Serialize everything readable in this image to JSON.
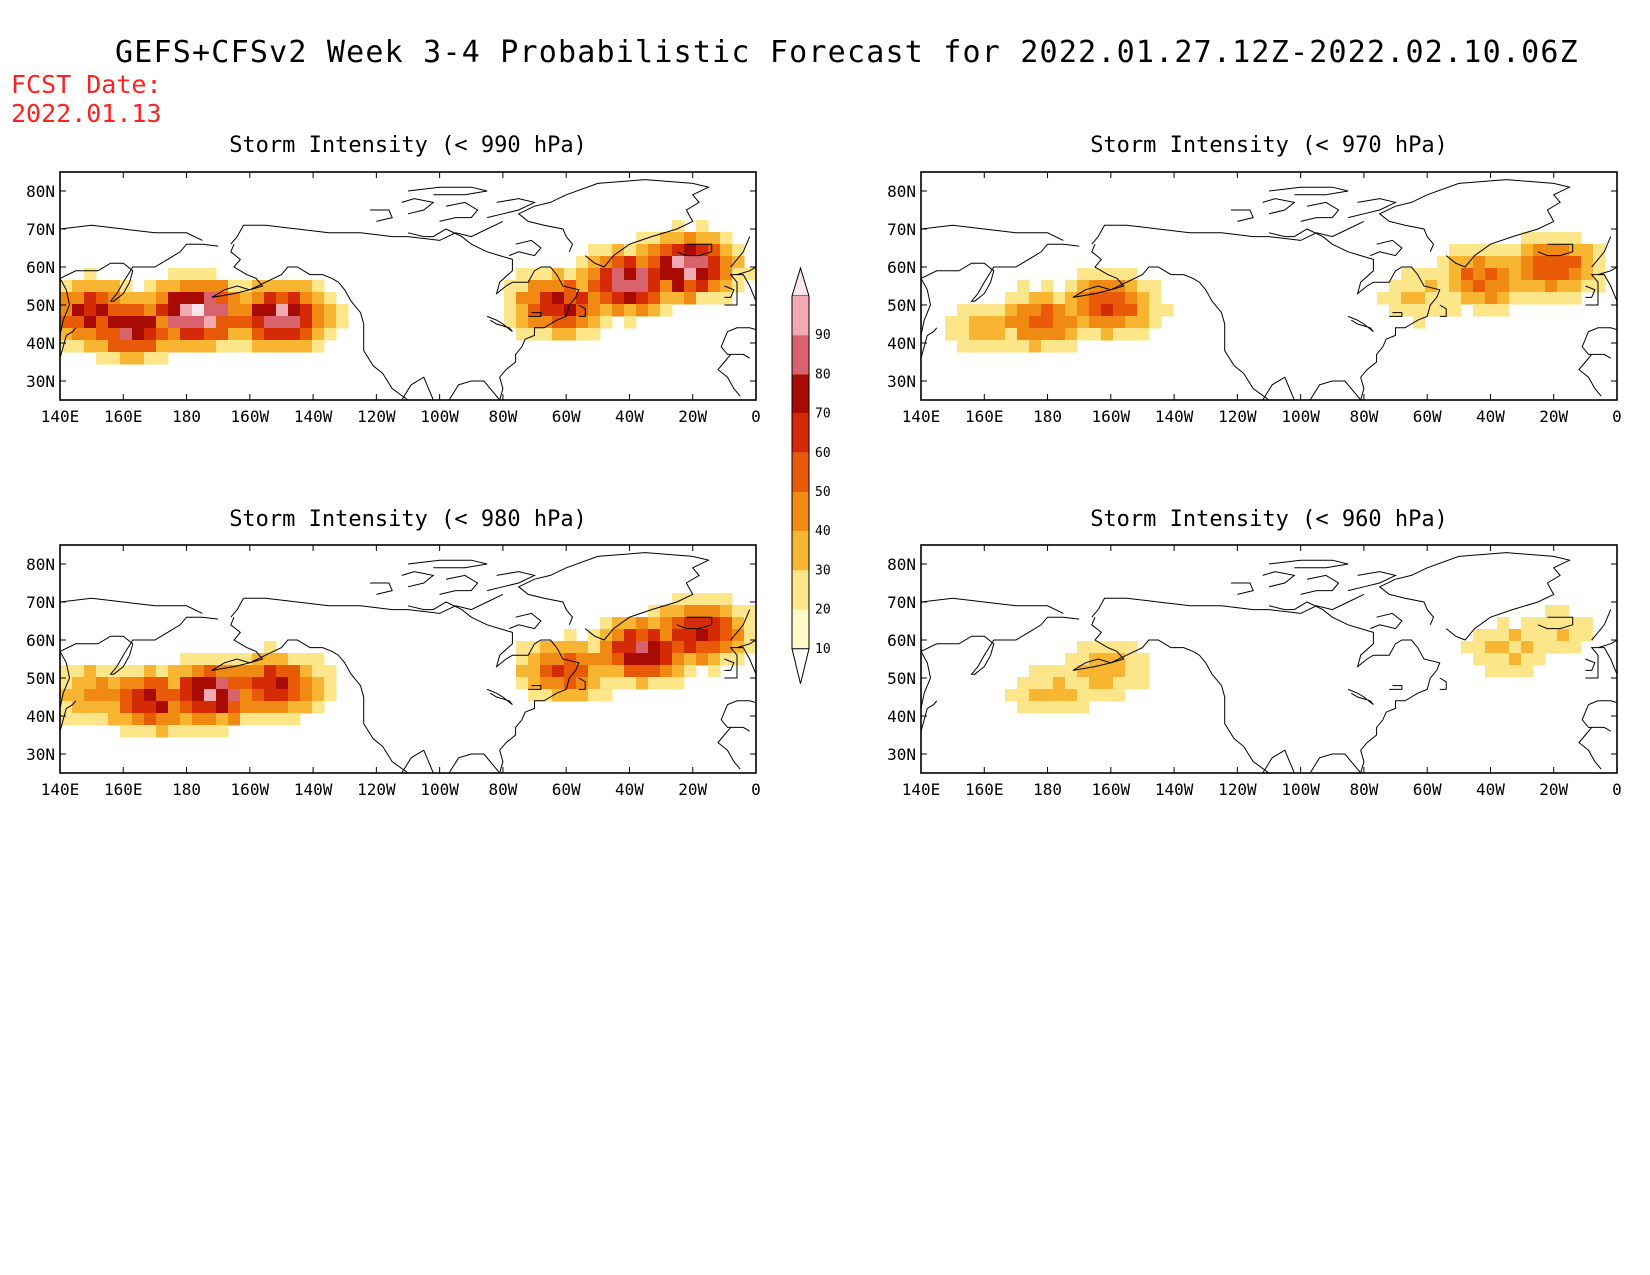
{
  "figure": {
    "title": "GEFS+CFSv2 Week 3-4 Probabilistic Forecast for 2022.01.27.12Z-2022.02.10.06Z",
    "fcst_date_label": "FCST Date:",
    "fcst_date_value": "2022.01.13"
  },
  "axes": {
    "lon_ticks": [
      "140E",
      "160E",
      "180",
      "160W",
      "140W",
      "120W",
      "100W",
      "80W",
      "60W",
      "40W",
      "20W",
      "0"
    ],
    "lat_ticks": [
      "80N",
      "70N",
      "60N",
      "50N",
      "40N",
      "30N"
    ]
  },
  "colorbar": {
    "levels": [
      "10",
      "20",
      "30",
      "40",
      "50",
      "60",
      "70",
      "80",
      "90"
    ],
    "colors": [
      "#fffac8",
      "#fde68a",
      "#f7b531",
      "#f08a12",
      "#e85a08",
      "#d42a06",
      "#a80b04",
      "#d9636c",
      "#f2a9b2",
      "#fde6ea"
    ]
  },
  "panels": [
    {
      "title": "Storm Intensity (< 990 hPa)"
    },
    {
      "title": "Storm Intensity (< 970 hPa)"
    },
    {
      "title": "Storm Intensity (< 980 hPa)"
    },
    {
      "title": "Storm Intensity (< 960 hPa)"
    }
  ],
  "chart_data": {
    "type": "heatmap",
    "units": "percent probability",
    "lon_range": [
      140,
      360
    ],
    "lat_range": [
      25,
      85
    ],
    "panels": [
      {
        "threshold_hpa": 990,
        "blobs": [
          {
            "lon": 183,
            "lat": 48,
            "peak": 92
          },
          {
            "lon": 163,
            "lat": 44,
            "peak": 70
          },
          {
            "lon": 210,
            "lat": 47,
            "peak": 80
          },
          {
            "lon": 150,
            "lat": 48,
            "peak": 62
          },
          {
            "lon": 320,
            "lat": 56,
            "peak": 80
          },
          {
            "lon": 298,
            "lat": 50,
            "peak": 62
          },
          {
            "lon": 338,
            "lat": 60,
            "peak": 85
          }
        ]
      },
      {
        "threshold_hpa": 970,
        "blobs": [
          {
            "lon": 178,
            "lat": 46,
            "peak": 45
          },
          {
            "lon": 200,
            "lat": 50,
            "peak": 52
          },
          {
            "lon": 160,
            "lat": 44,
            "peak": 25
          },
          {
            "lon": 318,
            "lat": 57,
            "peak": 45
          },
          {
            "lon": 340,
            "lat": 60,
            "peak": 48
          },
          {
            "lon": 298,
            "lat": 52,
            "peak": 22
          }
        ]
      },
      {
        "threshold_hpa": 980,
        "blobs": [
          {
            "lon": 188,
            "lat": 46,
            "peak": 78
          },
          {
            "lon": 168,
            "lat": 44,
            "peak": 62
          },
          {
            "lon": 208,
            "lat": 48,
            "peak": 62
          },
          {
            "lon": 152,
            "lat": 46,
            "peak": 35
          },
          {
            "lon": 325,
            "lat": 57,
            "peak": 72
          },
          {
            "lon": 300,
            "lat": 52,
            "peak": 50
          },
          {
            "lon": 342,
            "lat": 62,
            "peak": 65
          }
        ]
      },
      {
        "threshold_hpa": 960,
        "blobs": [
          {
            "lon": 182,
            "lat": 46,
            "peak": 22
          },
          {
            "lon": 198,
            "lat": 52,
            "peak": 28
          },
          {
            "lon": 325,
            "lat": 58,
            "peak": 24
          },
          {
            "lon": 340,
            "lat": 62,
            "peak": 20
          }
        ]
      }
    ]
  }
}
